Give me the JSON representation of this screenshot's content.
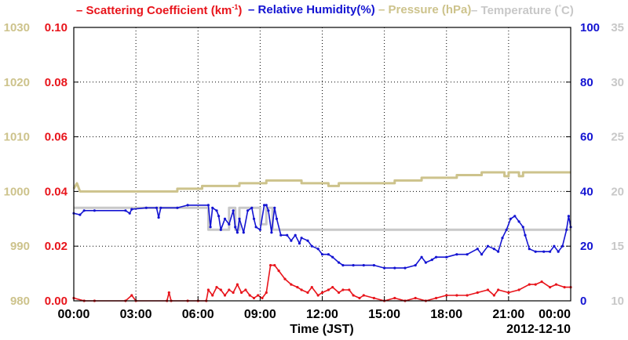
{
  "chart_data": {
    "type": "line",
    "legend": [
      {
        "label": "Scattering Coefficient (km",
        "sup": "-1",
        "tail": ")",
        "color": "#e8141b"
      },
      {
        "label": "Relative Humidity(%)",
        "color": "#1414d2"
      },
      {
        "label": "Pressure (hPa)",
        "color": "#cdc38c"
      },
      {
        "label": "Temperature (",
        "sup": "°",
        "tail": "C)",
        "color": "#c8c8c8"
      }
    ],
    "xlabel": "Time (JST)",
    "date_label": "2012-12-10",
    "x_ticks": [
      "00:00",
      "03:00",
      "06:00",
      "09:00",
      "12:00",
      "15:00",
      "18:00",
      "21:00",
      "00:00"
    ],
    "xlim_hours": [
      0,
      24
    ],
    "axes": {
      "pressure": {
        "ylim": [
          980,
          1030
        ],
        "ticks": [
          "980",
          "990",
          "1000",
          "1010",
          "1020",
          "1030"
        ],
        "color": "#cdc38c",
        "side": "left-outer"
      },
      "scattering": {
        "ylim": [
          0,
          0.1
        ],
        "ticks": [
          "0.00",
          "0.02",
          "0.04",
          "0.06",
          "0.08",
          "0.10"
        ],
        "color": "#e8141b",
        "side": "left-inner"
      },
      "humidity": {
        "ylim": [
          0,
          100
        ],
        "ticks": [
          "0",
          "20",
          "40",
          "60",
          "80",
          "100"
        ],
        "color": "#1414d2",
        "side": "right-inner"
      },
      "temperature": {
        "ylim": [
          10,
          35
        ],
        "ticks": [
          "10",
          "15",
          "20",
          "25",
          "30",
          "35"
        ],
        "color": "#c8c8c8",
        "side": "right-outer"
      }
    },
    "grid": true,
    "series": [
      {
        "name": "Pressure (hPa)",
        "axis": "pressure",
        "color": "#cdc38c",
        "step": true,
        "points": [
          [
            0,
            1000.5
          ],
          [
            0.15,
            1001.5
          ],
          [
            0.3,
            1000
          ],
          [
            5.0,
            1000
          ],
          [
            5.0,
            1000.5
          ],
          [
            6.2,
            1000.5
          ],
          [
            6.2,
            1001
          ],
          [
            8.0,
            1001
          ],
          [
            8.0,
            1001.5
          ],
          [
            9.3,
            1001.5
          ],
          [
            9.3,
            1002
          ],
          [
            11.0,
            1002
          ],
          [
            11.0,
            1001.5
          ],
          [
            12.3,
            1001.5
          ],
          [
            12.3,
            1001
          ],
          [
            12.8,
            1001
          ],
          [
            12.8,
            1001.5
          ],
          [
            15.5,
            1001.5
          ],
          [
            15.5,
            1002
          ],
          [
            16.8,
            1002
          ],
          [
            16.8,
            1002.5
          ],
          [
            18.5,
            1002.5
          ],
          [
            18.5,
            1003
          ],
          [
            19.7,
            1003
          ],
          [
            19.7,
            1003.5
          ],
          [
            20.8,
            1003.5
          ],
          [
            20.8,
            1002.8
          ],
          [
            21.0,
            1002.8
          ],
          [
            21.0,
            1003.5
          ],
          [
            21.5,
            1003.5
          ],
          [
            21.5,
            1002.8
          ],
          [
            21.7,
            1002.8
          ],
          [
            21.7,
            1003.5
          ],
          [
            24,
            1003.5
          ]
        ]
      },
      {
        "name": "Temperature (°C)",
        "axis": "temperature",
        "color": "#c8c8c8",
        "step": true,
        "points": [
          [
            0,
            18.5
          ],
          [
            6.5,
            18.5
          ],
          [
            6.5,
            16.5
          ],
          [
            7.5,
            16.5
          ],
          [
            7.5,
            18.5
          ],
          [
            7.8,
            18.5
          ],
          [
            7.8,
            16.5
          ],
          [
            8.0,
            16.5
          ],
          [
            8.0,
            18.5
          ],
          [
            9.0,
            18.5
          ],
          [
            9.0,
            17.0
          ],
          [
            9.3,
            17.0
          ],
          [
            9.3,
            18.5
          ],
          [
            9.6,
            18.5
          ],
          [
            9.6,
            16.5
          ],
          [
            24,
            16.5
          ]
        ]
      },
      {
        "name": "Relative Humidity(%)",
        "axis": "humidity",
        "color": "#1414d2",
        "points": [
          [
            0,
            32
          ],
          [
            0.3,
            31.5
          ],
          [
            0.5,
            33
          ],
          [
            1.0,
            33
          ],
          [
            2.5,
            33
          ],
          [
            2.7,
            32
          ],
          [
            2.8,
            33.5
          ],
          [
            3.5,
            34
          ],
          [
            4.0,
            34
          ],
          [
            4.1,
            30.5
          ],
          [
            4.2,
            34
          ],
          [
            5.0,
            34
          ],
          [
            5.5,
            35
          ],
          [
            6.5,
            35
          ],
          [
            6.6,
            27
          ],
          [
            6.7,
            34
          ],
          [
            6.9,
            33
          ],
          [
            7.0,
            31
          ],
          [
            7.1,
            26
          ],
          [
            7.3,
            30
          ],
          [
            7.5,
            28
          ],
          [
            7.7,
            33
          ],
          [
            7.8,
            27
          ],
          [
            7.9,
            25
          ],
          [
            8.0,
            30
          ],
          [
            8.2,
            25
          ],
          [
            8.4,
            33
          ],
          [
            8.6,
            34
          ],
          [
            8.7,
            30
          ],
          [
            8.8,
            27
          ],
          [
            9.0,
            26
          ],
          [
            9.2,
            35
          ],
          [
            9.3,
            35
          ],
          [
            9.4,
            33
          ],
          [
            9.55,
            25
          ],
          [
            9.7,
            34
          ],
          [
            9.8,
            30
          ],
          [
            10.0,
            24
          ],
          [
            10.3,
            24
          ],
          [
            10.5,
            22
          ],
          [
            10.7,
            24
          ],
          [
            10.9,
            21
          ],
          [
            11.0,
            23
          ],
          [
            11.3,
            22
          ],
          [
            11.5,
            20
          ],
          [
            11.8,
            19
          ],
          [
            12.0,
            17
          ],
          [
            12.3,
            17
          ],
          [
            12.5,
            16
          ],
          [
            12.8,
            14
          ],
          [
            13.0,
            13
          ],
          [
            13.5,
            13
          ],
          [
            14.0,
            13
          ],
          [
            14.5,
            13
          ],
          [
            15.0,
            12
          ],
          [
            15.5,
            12
          ],
          [
            16.0,
            12
          ],
          [
            16.5,
            13
          ],
          [
            16.8,
            16
          ],
          [
            17.0,
            14
          ],
          [
            17.3,
            15
          ],
          [
            17.5,
            16
          ],
          [
            18.0,
            16
          ],
          [
            18.5,
            17
          ],
          [
            19.0,
            17
          ],
          [
            19.5,
            19
          ],
          [
            19.7,
            17
          ],
          [
            20.0,
            20
          ],
          [
            20.3,
            19
          ],
          [
            20.5,
            18
          ],
          [
            20.7,
            23
          ],
          [
            20.9,
            26
          ],
          [
            21.1,
            30
          ],
          [
            21.3,
            31
          ],
          [
            21.5,
            29
          ],
          [
            21.7,
            27
          ],
          [
            21.8,
            24
          ],
          [
            22.0,
            19
          ],
          [
            22.3,
            18
          ],
          [
            22.7,
            18
          ],
          [
            23.0,
            18
          ],
          [
            23.2,
            20
          ],
          [
            23.4,
            18
          ],
          [
            23.6,
            20
          ],
          [
            23.8,
            26
          ],
          [
            23.9,
            31
          ],
          [
            24,
            27
          ]
        ]
      },
      {
        "name": "Scattering Coefficient (km-1)",
        "axis": "scattering",
        "color": "#e8141b",
        "points": [
          [
            0,
            0.001
          ],
          [
            0.5,
            0.0
          ],
          [
            1.0,
            0.0
          ],
          [
            2.5,
            0.0
          ],
          [
            2.8,
            0.002
          ],
          [
            3.0,
            0.0
          ],
          [
            4.5,
            0.0
          ],
          [
            4.6,
            0.003
          ],
          [
            4.7,
            0.0
          ],
          [
            5.5,
            0.0
          ],
          [
            6.0,
            0.0
          ],
          [
            6.4,
            0.0
          ],
          [
            6.5,
            0.004
          ],
          [
            6.7,
            0.002
          ],
          [
            6.9,
            0.005
          ],
          [
            7.1,
            0.004
          ],
          [
            7.3,
            0.002
          ],
          [
            7.5,
            0.004
          ],
          [
            7.7,
            0.003
          ],
          [
            7.9,
            0.006
          ],
          [
            8.1,
            0.003
          ],
          [
            8.3,
            0.004
          ],
          [
            8.5,
            0.002
          ],
          [
            8.7,
            0.001
          ],
          [
            8.9,
            0.002
          ],
          [
            9.1,
            0.001
          ],
          [
            9.3,
            0.003
          ],
          [
            9.5,
            0.013
          ],
          [
            9.7,
            0.013
          ],
          [
            9.9,
            0.011
          ],
          [
            10.2,
            0.008
          ],
          [
            10.5,
            0.006
          ],
          [
            10.8,
            0.005
          ],
          [
            11.0,
            0.004
          ],
          [
            11.3,
            0.003
          ],
          [
            11.5,
            0.005
          ],
          [
            11.8,
            0.002
          ],
          [
            12.0,
            0.003
          ],
          [
            12.3,
            0.004
          ],
          [
            12.5,
            0.005
          ],
          [
            12.8,
            0.003
          ],
          [
            13.0,
            0.004
          ],
          [
            13.3,
            0.004
          ],
          [
            13.5,
            0.002
          ],
          [
            13.8,
            0.001
          ],
          [
            14.0,
            0.002
          ],
          [
            14.5,
            0.001
          ],
          [
            15.0,
            0.0
          ],
          [
            15.5,
            0.001
          ],
          [
            16.0,
            0.0
          ],
          [
            16.5,
            0.001
          ],
          [
            17.0,
            0.0
          ],
          [
            17.5,
            0.001
          ],
          [
            18.0,
            0.002
          ],
          [
            18.5,
            0.002
          ],
          [
            19.0,
            0.002
          ],
          [
            19.5,
            0.003
          ],
          [
            20.0,
            0.004
          ],
          [
            20.3,
            0.002
          ],
          [
            20.5,
            0.004
          ],
          [
            21.0,
            0.003
          ],
          [
            21.5,
            0.004
          ],
          [
            22.0,
            0.006
          ],
          [
            22.3,
            0.006
          ],
          [
            22.6,
            0.007
          ],
          [
            23.0,
            0.005
          ],
          [
            23.3,
            0.006
          ],
          [
            23.7,
            0.005
          ],
          [
            24,
            0.005
          ]
        ]
      }
    ]
  }
}
